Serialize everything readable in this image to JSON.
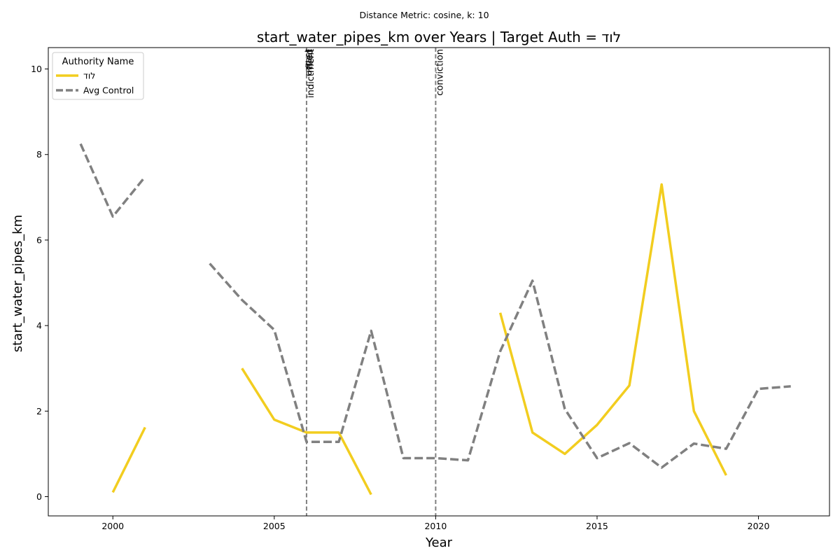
{
  "suptitle": "Distance Metric: cosine, k: 10",
  "chart_data": {
    "type": "line",
    "title": "start_water_pipes_km over Years | Target Auth = לוד",
    "xlabel": "Year",
    "ylabel": "start_water_pipes_km",
    "xlim": [
      1998.0,
      2022.2
    ],
    "ylim": [
      -0.45,
      10.5
    ],
    "xticks": [
      2000,
      2005,
      2010,
      2015,
      2020
    ],
    "yticks": [
      0,
      2,
      4,
      6,
      8,
      10
    ],
    "grid": false,
    "legend": {
      "title": "Authority Name",
      "placement": "top-left"
    },
    "series": [
      {
        "name": "לוד",
        "color": "#f2cd1f",
        "style": "solid",
        "segments": [
          [
            [
              2000,
              0.1
            ],
            [
              2001,
              1.62
            ]
          ],
          [
            [
              2004,
              3.0
            ],
            [
              2005,
              1.8
            ],
            [
              2006,
              1.5
            ],
            [
              2007,
              1.5
            ],
            [
              2008,
              0.05
            ]
          ],
          [
            [
              2012,
              4.3
            ],
            [
              2013,
              1.5
            ],
            [
              2014,
              1.0
            ],
            [
              2015,
              1.68
            ],
            [
              2016,
              2.6
            ],
            [
              2017,
              7.3
            ],
            [
              2018,
              2.0
            ],
            [
              2019,
              0.5
            ]
          ]
        ]
      },
      {
        "name": "Avg Control",
        "color": "#808080",
        "style": "dashed",
        "segments": [
          [
            [
              1999,
              8.25
            ],
            [
              2000,
              6.55
            ],
            [
              2001,
              7.48
            ]
          ],
          [
            [
              2003,
              5.45
            ],
            [
              2004,
              4.6
            ],
            [
              2005,
              3.9
            ],
            [
              2006,
              1.28
            ],
            [
              2007,
              1.28
            ],
            [
              2008,
              3.88
            ],
            [
              2009,
              0.9
            ],
            [
              2010,
              0.9
            ],
            [
              2011,
              0.85
            ],
            [
              2012,
              3.4
            ],
            [
              2013,
              5.05
            ],
            [
              2014,
              2.05
            ],
            [
              2015,
              0.9
            ],
            [
              2016,
              1.25
            ],
            [
              2017,
              0.68
            ],
            [
              2018,
              1.24
            ],
            [
              2019,
              1.12
            ],
            [
              2020,
              2.52
            ],
            [
              2021,
              2.58
            ]
          ]
        ]
      }
    ],
    "events": [
      {
        "x": 2006,
        "labels": [
          "indictment",
          "filed",
          "arrest"
        ]
      },
      {
        "x": 2010,
        "labels": [
          "conviction"
        ]
      }
    ]
  }
}
